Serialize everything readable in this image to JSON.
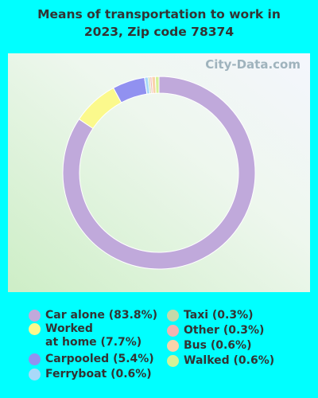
{
  "chart_data": {
    "type": "donut",
    "title": "Means of transportation to work in\n2023, Zip code 78374",
    "watermark": "City-Data.com",
    "categories": [
      "Car alone (83.8%)",
      "Worked\nat home (7.7%)",
      "Carpooled (5.4%)",
      "Ferryboat (0.6%)",
      "Taxi (0.3%)",
      "Other (0.3%)",
      "Bus (0.6%)",
      "Walked (0.6%)"
    ],
    "values": [
      83.8,
      7.7,
      5.4,
      0.6,
      0.3,
      0.3,
      0.6,
      0.6
    ],
    "colors": [
      "#c0a9db",
      "#fbf98c",
      "#9191f0",
      "#a9d9f9",
      "#c6d9a9",
      "#f2b3b0",
      "#f9d3aa",
      "#d5f297"
    ]
  }
}
